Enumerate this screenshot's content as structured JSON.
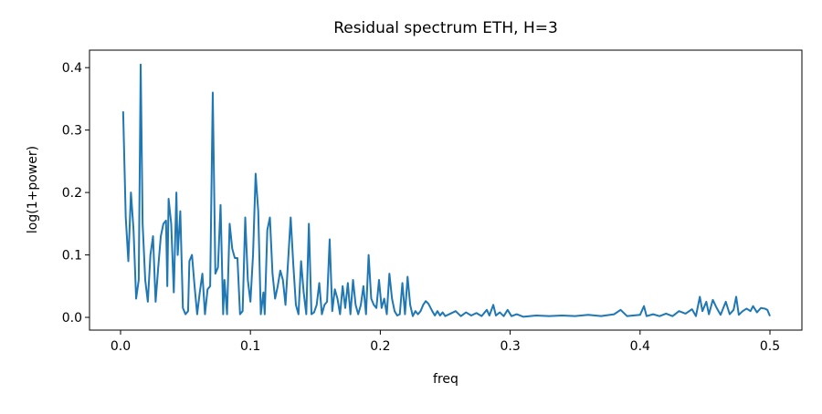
{
  "chart_data": {
    "type": "line",
    "title": "Residual spectrum ETH, H=3",
    "xlabel": "freq",
    "ylabel": "log(1+power)",
    "xlim": [
      -0.0239,
      0.5246
    ],
    "ylim": [
      -0.0204,
      0.428
    ],
    "xticks": [
      {
        "value": 0,
        "label": "0.0"
      },
      0.1,
      0.2,
      0.3,
      0.4,
      0.5
    ],
    "yticks": [
      {
        "value": 0,
        "label": "0.0"
      },
      0.1,
      0.2,
      0.3,
      0.4
    ],
    "grid": false,
    "series": [
      {
        "color": "#1f77b4",
        "x": [
          0.002,
          0.004,
          0.006,
          0.008,
          0.01,
          0.012,
          0.014,
          0.0155,
          0.017,
          0.019,
          0.021,
          0.023,
          0.025,
          0.027,
          0.029,
          0.031,
          0.033,
          0.035,
          0.036,
          0.037,
          0.039,
          0.041,
          0.043,
          0.044,
          0.046,
          0.048,
          0.05,
          0.052,
          0.053,
          0.055,
          0.057,
          0.059,
          0.061,
          0.063,
          0.065,
          0.067,
          0.069,
          0.071,
          0.073,
          0.075,
          0.077,
          0.079,
          0.08,
          0.082,
          0.084,
          0.086,
          0.088,
          0.09,
          0.092,
          0.094,
          0.096,
          0.098,
          0.1,
          0.102,
          0.104,
          0.106,
          0.108,
          0.11,
          0.111,
          0.113,
          0.115,
          0.117,
          0.119,
          0.121,
          0.123,
          0.125,
          0.127,
          0.129,
          0.131,
          0.133,
          0.135,
          0.137,
          0.139,
          0.141,
          0.143,
          0.145,
          0.147,
          0.149,
          0.151,
          0.153,
          0.155,
          0.157,
          0.159,
          0.161,
          0.163,
          0.165,
          0.167,
          0.169,
          0.171,
          0.173,
          0.175,
          0.177,
          0.179,
          0.181,
          0.183,
          0.185,
          0.187,
          0.189,
          0.191,
          0.193,
          0.195,
          0.197,
          0.199,
          0.201,
          0.203,
          0.205,
          0.207,
          0.209,
          0.211,
          0.213,
          0.215,
          0.217,
          0.219,
          0.221,
          0.223,
          0.225,
          0.227,
          0.229,
          0.231,
          0.233,
          0.235,
          0.237,
          0.24,
          0.242,
          0.244,
          0.246,
          0.248,
          0.25,
          0.254,
          0.258,
          0.262,
          0.266,
          0.27,
          0.274,
          0.278,
          0.282,
          0.284,
          0.287,
          0.289,
          0.292,
          0.295,
          0.298,
          0.301,
          0.305,
          0.31,
          0.32,
          0.33,
          0.34,
          0.35,
          0.36,
          0.37,
          0.38,
          0.385,
          0.39,
          0.4,
          0.403,
          0.405,
          0.41,
          0.415,
          0.42,
          0.425,
          0.43,
          0.435,
          0.44,
          0.443,
          0.446,
          0.448,
          0.451,
          0.453,
          0.456,
          0.459,
          0.462,
          0.466,
          0.469,
          0.472,
          0.474,
          0.476,
          0.479,
          0.482,
          0.485,
          0.487,
          0.49,
          0.493,
          0.496,
          0.498,
          0.5
        ],
        "values": [
          0.33,
          0.16,
          0.09,
          0.2,
          0.14,
          0.03,
          0.06,
          0.405,
          0.15,
          0.06,
          0.025,
          0.1,
          0.13,
          0.025,
          0.08,
          0.13,
          0.15,
          0.155,
          0.05,
          0.19,
          0.15,
          0.04,
          0.2,
          0.1,
          0.17,
          0.015,
          0.005,
          0.01,
          0.09,
          0.1,
          0.05,
          0.005,
          0.04,
          0.07,
          0.005,
          0.045,
          0.05,
          0.36,
          0.07,
          0.08,
          0.18,
          0.005,
          0.06,
          0.005,
          0.15,
          0.11,
          0.095,
          0.095,
          0.005,
          0.01,
          0.16,
          0.06,
          0.025,
          0.1,
          0.23,
          0.17,
          0.005,
          0.04,
          0.005,
          0.14,
          0.16,
          0.07,
          0.03,
          0.05,
          0.075,
          0.06,
          0.02,
          0.09,
          0.16,
          0.085,
          0.02,
          0.005,
          0.09,
          0.04,
          0.005,
          0.15,
          0.005,
          0.008,
          0.02,
          0.055,
          0.005,
          0.02,
          0.025,
          0.125,
          0.01,
          0.045,
          0.03,
          0.005,
          0.05,
          0.015,
          0.055,
          0.005,
          0.06,
          0.02,
          0.005,
          0.02,
          0.05,
          0.005,
          0.1,
          0.03,
          0.02,
          0.015,
          0.06,
          0.015,
          0.03,
          0.005,
          0.07,
          0.03,
          0.01,
          0.003,
          0.005,
          0.055,
          0.005,
          0.065,
          0.02,
          0.002,
          0.01,
          0.005,
          0.01,
          0.02,
          0.026,
          0.022,
          0.01,
          0.003,
          0.01,
          0.003,
          0.008,
          0.002,
          0.006,
          0.01,
          0.002,
          0.008,
          0.003,
          0.007,
          0.002,
          0.012,
          0.003,
          0.02,
          0.003,
          0.008,
          0.002,
          0.012,
          0.002,
          0.005,
          0.001,
          0.003,
          0.002,
          0.003,
          0.002,
          0.004,
          0.002,
          0.005,
          0.012,
          0.002,
          0.004,
          0.018,
          0.002,
          0.005,
          0.002,
          0.006,
          0.002,
          0.01,
          0.006,
          0.013,
          0.002,
          0.033,
          0.01,
          0.025,
          0.005,
          0.028,
          0.015,
          0.004,
          0.025,
          0.005,
          0.012,
          0.033,
          0.004,
          0.01,
          0.014,
          0.01,
          0.018,
          0.008,
          0.015,
          0.014,
          0.012,
          0.002
        ]
      }
    ]
  }
}
